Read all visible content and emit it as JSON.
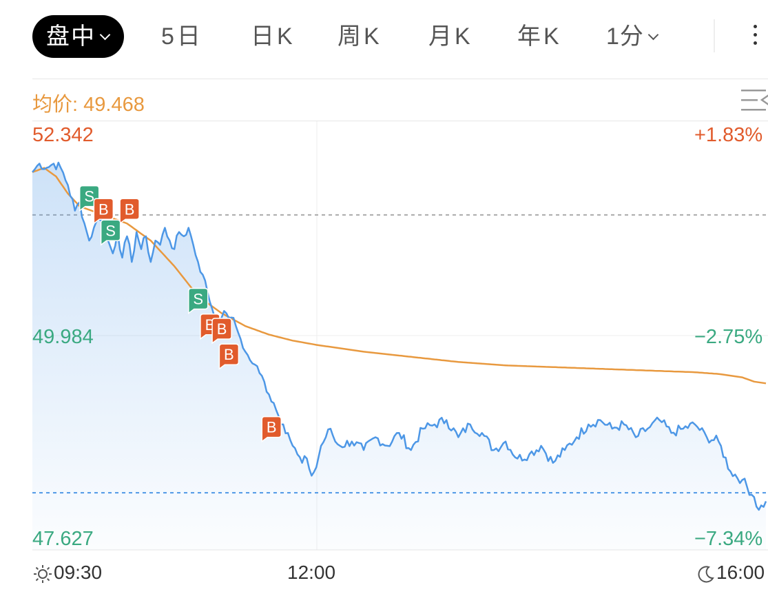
{
  "tabs": {
    "intraday": "盘中",
    "five_day": "5日",
    "day_k": "日K",
    "week_k": "周K",
    "month_k": "月K",
    "year_k": "年K",
    "interval": "1分"
  },
  "avg_price": {
    "label": "均价:",
    "value": "49.468"
  },
  "axis": {
    "price_high": "52.342",
    "price_mid": "49.984",
    "price_low": "47.627",
    "pct_high": "+1.83%",
    "pct_mid": "−2.75%",
    "pct_low": "−7.34%",
    "time_start": "09:30",
    "time_mid": "12:00",
    "time_end": "16:00"
  },
  "colors": {
    "price_line": "#4d97e6",
    "avg_line": "#e8993f",
    "up": "#e15b2c",
    "down": "#3aa981",
    "buy_marker": "#e15b2c",
    "sell_marker": "#3aa981"
  },
  "chart_data": {
    "type": "line",
    "ylim": [
      47.627,
      52.342
    ],
    "time_ticks": [
      "09:30",
      "12:00",
      "16:00"
    ],
    "reference_prev_close": 51.4,
    "price_series": [
      [
        0,
        51.9
      ],
      [
        3,
        52.0
      ],
      [
        6,
        51.95
      ],
      [
        9,
        52.0
      ],
      [
        12,
        51.95
      ],
      [
        15,
        51.75
      ],
      [
        18,
        51.45
      ],
      [
        20,
        51.55
      ],
      [
        22,
        51.3
      ],
      [
        24,
        51.1
      ],
      [
        26,
        51.25
      ],
      [
        28,
        51.35
      ],
      [
        30,
        51.4
      ],
      [
        32,
        51.1
      ],
      [
        34,
        50.95
      ],
      [
        36,
        51.2
      ],
      [
        38,
        50.9
      ],
      [
        40,
        51.15
      ],
      [
        42,
        50.85
      ],
      [
        44,
        51.2
      ],
      [
        46,
        51.0
      ],
      [
        48,
        51.15
      ],
      [
        50,
        50.85
      ],
      [
        52,
        51.1
      ],
      [
        54,
        51.05
      ],
      [
        56,
        51.25
      ],
      [
        58,
        51.1
      ],
      [
        60,
        51.0
      ],
      [
        62,
        51.2
      ],
      [
        64,
        51.15
      ],
      [
        66,
        51.25
      ],
      [
        68,
        51.05
      ],
      [
        70,
        50.85
      ],
      [
        72,
        50.7
      ],
      [
        74,
        50.5
      ],
      [
        76,
        50.3
      ],
      [
        78,
        50.15
      ],
      [
        80,
        50.2
      ],
      [
        82,
        50.25
      ],
      [
        84,
        50.2
      ],
      [
        86,
        50.1
      ],
      [
        88,
        49.95
      ],
      [
        90,
        49.8
      ],
      [
        92,
        49.7
      ],
      [
        94,
        49.65
      ],
      [
        96,
        49.55
      ],
      [
        98,
        49.45
      ],
      [
        100,
        49.3
      ],
      [
        102,
        49.2
      ],
      [
        104,
        49.05
      ],
      [
        106,
        48.95
      ],
      [
        108,
        48.85
      ],
      [
        110,
        48.7
      ],
      [
        112,
        48.6
      ],
      [
        114,
        48.5
      ],
      [
        116,
        48.55
      ],
      [
        118,
        48.35
      ],
      [
        120,
        48.45
      ],
      [
        122,
        48.7
      ],
      [
        124,
        48.8
      ],
      [
        126,
        48.9
      ],
      [
        128,
        48.75
      ],
      [
        130,
        48.7
      ],
      [
        135,
        48.75
      ],
      [
        140,
        48.65
      ],
      [
        145,
        48.8
      ],
      [
        150,
        48.7
      ],
      [
        155,
        48.85
      ],
      [
        160,
        48.65
      ],
      [
        165,
        48.9
      ],
      [
        170,
        48.95
      ],
      [
        175,
        49.0
      ],
      [
        180,
        48.8
      ],
      [
        185,
        48.95
      ],
      [
        190,
        48.85
      ],
      [
        195,
        48.65
      ],
      [
        200,
        48.75
      ],
      [
        205,
        48.55
      ],
      [
        210,
        48.6
      ],
      [
        215,
        48.7
      ],
      [
        220,
        48.5
      ],
      [
        225,
        48.65
      ],
      [
        230,
        48.8
      ],
      [
        235,
        48.95
      ],
      [
        240,
        49.0
      ],
      [
        245,
        48.9
      ],
      [
        250,
        48.95
      ],
      [
        255,
        48.8
      ],
      [
        260,
        48.9
      ],
      [
        265,
        49.0
      ],
      [
        270,
        48.85
      ],
      [
        275,
        48.9
      ],
      [
        280,
        48.95
      ],
      [
        285,
        48.8
      ],
      [
        290,
        48.75
      ],
      [
        295,
        48.4
      ],
      [
        300,
        48.3
      ],
      [
        305,
        48.1
      ],
      [
        307,
        47.95
      ],
      [
        310,
        48.05
      ]
    ],
    "avg_series": [
      [
        0,
        51.9
      ],
      [
        5,
        51.95
      ],
      [
        10,
        51.85
      ],
      [
        15,
        51.65
      ],
      [
        20,
        51.5
      ],
      [
        30,
        51.4
      ],
      [
        40,
        51.3
      ],
      [
        50,
        51.1
      ],
      [
        60,
        50.8
      ],
      [
        70,
        50.45
      ],
      [
        80,
        50.25
      ],
      [
        90,
        50.1
      ],
      [
        100,
        50.0
      ],
      [
        110,
        49.93
      ],
      [
        120,
        49.88
      ],
      [
        130,
        49.84
      ],
      [
        140,
        49.8
      ],
      [
        150,
        49.77
      ],
      [
        160,
        49.74
      ],
      [
        170,
        49.71
      ],
      [
        180,
        49.68
      ],
      [
        190,
        49.66
      ],
      [
        200,
        49.64
      ],
      [
        210,
        49.63
      ],
      [
        220,
        49.62
      ],
      [
        230,
        49.61
      ],
      [
        240,
        49.6
      ],
      [
        250,
        49.59
      ],
      [
        260,
        49.58
      ],
      [
        270,
        49.57
      ],
      [
        280,
        49.56
      ],
      [
        290,
        49.54
      ],
      [
        300,
        49.5
      ],
      [
        305,
        49.45
      ],
      [
        310,
        49.43
      ]
    ],
    "trade_markers": [
      {
        "type": "S",
        "label": "S",
        "t": 20,
        "p": 51.45
      },
      {
        "type": "B",
        "label": "B",
        "t": 26,
        "p": 51.3
      },
      {
        "type": "B",
        "label": "B",
        "t": 37,
        "p": 51.3
      },
      {
        "type": "S",
        "label": "S",
        "t": 29,
        "p": 51.05
      },
      {
        "type": "S",
        "label": "S",
        "t": 66,
        "p": 50.25
      },
      {
        "type": "B",
        "label": "B",
        "t": 71,
        "p": 49.95
      },
      {
        "type": "B",
        "label": "B",
        "t": 76,
        "p": 49.9
      },
      {
        "type": "B",
        "label": "B",
        "t": 79,
        "p": 49.6
      },
      {
        "type": "B",
        "label": "B",
        "t": 97,
        "p": 48.75
      }
    ]
  }
}
